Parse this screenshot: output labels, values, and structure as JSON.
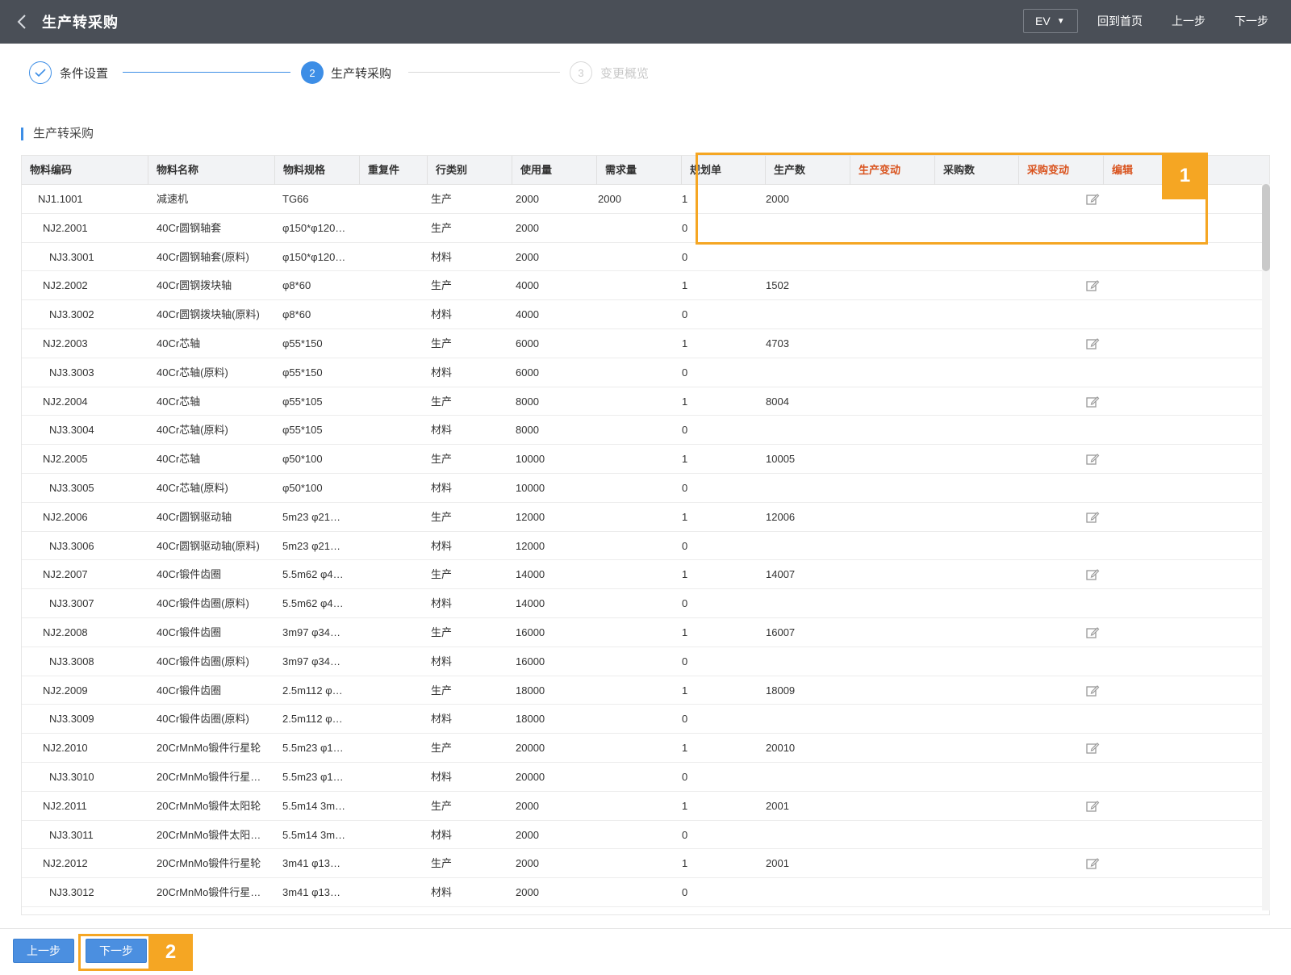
{
  "header": {
    "title": "生产转采购",
    "language": "EV",
    "links": [
      "回到首页",
      "上一步",
      "下一步"
    ]
  },
  "steps": [
    {
      "label": "条件设置",
      "index": "1",
      "state": "done"
    },
    {
      "label": "生产转采购",
      "index": "2",
      "state": "active"
    },
    {
      "label": "变更概览",
      "index": "3",
      "state": "todo"
    }
  ],
  "section_title": "生产转采购",
  "table": {
    "columns": [
      "物料编码",
      "物料名称",
      "物料规格",
      "重复件",
      "行类别",
      "使用量",
      "需求量",
      "规划单",
      "生产数",
      "生产变动",
      "采购数",
      "采购变动",
      "编辑"
    ],
    "rows": [
      {
        "code": "NJ1.1001",
        "name": "减速机",
        "spec": "TG66",
        "repeat": "",
        "category": "生产",
        "usage": "2000",
        "demand": "2000",
        "plan": "1",
        "prod": "2000",
        "edit": true
      },
      {
        "code": "NJ2.2001",
        "name": "40Cr圆钢轴套",
        "spec": "φ150*φ120…",
        "repeat": "",
        "category": "生产",
        "usage": "2000",
        "demand": "",
        "plan": "0",
        "prod": "",
        "edit": false
      },
      {
        "code": "NJ3.3001",
        "name": "40Cr圆钢轴套(原料)",
        "spec": "φ150*φ120…",
        "repeat": "",
        "category": "材料",
        "usage": "2000",
        "demand": "",
        "plan": "0",
        "prod": "",
        "edit": false
      },
      {
        "code": "NJ2.2002",
        "name": "40Cr圆钢拨块轴",
        "spec": "φ8*60",
        "repeat": "",
        "category": "生产",
        "usage": "4000",
        "demand": "",
        "plan": "1",
        "prod": "1502",
        "edit": true
      },
      {
        "code": "NJ3.3002",
        "name": "40Cr圆钢拨块轴(原料)",
        "spec": "φ8*60",
        "repeat": "",
        "category": "材料",
        "usage": "4000",
        "demand": "",
        "plan": "0",
        "prod": "",
        "edit": false
      },
      {
        "code": "NJ2.2003",
        "name": "40Cr芯轴",
        "spec": "φ55*150",
        "repeat": "",
        "category": "生产",
        "usage": "6000",
        "demand": "",
        "plan": "1",
        "prod": "4703",
        "edit": true
      },
      {
        "code": "NJ3.3003",
        "name": "40Cr芯轴(原料)",
        "spec": "φ55*150",
        "repeat": "",
        "category": "材料",
        "usage": "6000",
        "demand": "",
        "plan": "0",
        "prod": "",
        "edit": false
      },
      {
        "code": "NJ2.2004",
        "name": "40Cr芯轴",
        "spec": "φ55*105",
        "repeat": "",
        "category": "生产",
        "usage": "8000",
        "demand": "",
        "plan": "1",
        "prod": "8004",
        "edit": true
      },
      {
        "code": "NJ3.3004",
        "name": "40Cr芯轴(原料)",
        "spec": "φ55*105",
        "repeat": "",
        "category": "材料",
        "usage": "8000",
        "demand": "",
        "plan": "0",
        "prod": "",
        "edit": false
      },
      {
        "code": "NJ2.2005",
        "name": "40Cr芯轴",
        "spec": "φ50*100",
        "repeat": "",
        "category": "生产",
        "usage": "10000",
        "demand": "",
        "plan": "1",
        "prod": "10005",
        "edit": true
      },
      {
        "code": "NJ3.3005",
        "name": "40Cr芯轴(原料)",
        "spec": "φ50*100",
        "repeat": "",
        "category": "材料",
        "usage": "10000",
        "demand": "",
        "plan": "0",
        "prod": "",
        "edit": false
      },
      {
        "code": "NJ2.2006",
        "name": "40Cr圆钢驱动轴",
        "spec": "5m23 φ21…",
        "repeat": "",
        "category": "生产",
        "usage": "12000",
        "demand": "",
        "plan": "1",
        "prod": "12006",
        "edit": true
      },
      {
        "code": "NJ3.3006",
        "name": "40Cr圆钢驱动轴(原料)",
        "spec": "5m23 φ21…",
        "repeat": "",
        "category": "材料",
        "usage": "12000",
        "demand": "",
        "plan": "0",
        "prod": "",
        "edit": false
      },
      {
        "code": "NJ2.2007",
        "name": "40Cr锻件齿圈",
        "spec": "5.5m62 φ4…",
        "repeat": "",
        "category": "生产",
        "usage": "14000",
        "demand": "",
        "plan": "1",
        "prod": "14007",
        "edit": true
      },
      {
        "code": "NJ3.3007",
        "name": "40Cr锻件齿圈(原料)",
        "spec": "5.5m62 φ4…",
        "repeat": "",
        "category": "材料",
        "usage": "14000",
        "demand": "",
        "plan": "0",
        "prod": "",
        "edit": false
      },
      {
        "code": "NJ2.2008",
        "name": "40Cr锻件齿圈",
        "spec": "3m97 φ34…",
        "repeat": "",
        "category": "生产",
        "usage": "16000",
        "demand": "",
        "plan": "1",
        "prod": "16007",
        "edit": true
      },
      {
        "code": "NJ3.3008",
        "name": "40Cr锻件齿圈(原料)",
        "spec": "3m97 φ34…",
        "repeat": "",
        "category": "材料",
        "usage": "16000",
        "demand": "",
        "plan": "0",
        "prod": "",
        "edit": false
      },
      {
        "code": "NJ2.2009",
        "name": "40Cr锻件齿圈",
        "spec": "2.5m112 φ…",
        "repeat": "",
        "category": "生产",
        "usage": "18000",
        "demand": "",
        "plan": "1",
        "prod": "18009",
        "edit": true
      },
      {
        "code": "NJ3.3009",
        "name": "40Cr锻件齿圈(原料)",
        "spec": "2.5m112 φ…",
        "repeat": "",
        "category": "材料",
        "usage": "18000",
        "demand": "",
        "plan": "0",
        "prod": "",
        "edit": false
      },
      {
        "code": "NJ2.2010",
        "name": "20CrMnMo锻件行星轮",
        "spec": "5.5m23 φ1…",
        "repeat": "",
        "category": "生产",
        "usage": "20000",
        "demand": "",
        "plan": "1",
        "prod": "20010",
        "edit": true
      },
      {
        "code": "NJ3.3010",
        "name": "20CrMnMo锻件行星…",
        "spec": "5.5m23 φ1…",
        "repeat": "",
        "category": "材料",
        "usage": "20000",
        "demand": "",
        "plan": "0",
        "prod": "",
        "edit": false
      },
      {
        "code": "NJ2.2011",
        "name": "20CrMnMo锻件太阳轮",
        "spec": "5.5m14 3m…",
        "repeat": "",
        "category": "生产",
        "usage": "2000",
        "demand": "",
        "plan": "1",
        "prod": "2001",
        "edit": true
      },
      {
        "code": "NJ3.3011",
        "name": "20CrMnMo锻件太阳…",
        "spec": "5.5m14 3m…",
        "repeat": "",
        "category": "材料",
        "usage": "2000",
        "demand": "",
        "plan": "0",
        "prod": "",
        "edit": false
      },
      {
        "code": "NJ2.2012",
        "name": "20CrMnMo锻件行星轮",
        "spec": "3m41 φ13…",
        "repeat": "",
        "category": "生产",
        "usage": "2000",
        "demand": "",
        "plan": "1",
        "prod": "2001",
        "edit": true
      },
      {
        "code": "NJ3.3012",
        "name": "20CrMnMo锻件行星…",
        "spec": "3m41 φ13…",
        "repeat": "",
        "category": "材料",
        "usage": "2000",
        "demand": "",
        "plan": "0",
        "prod": "",
        "edit": false
      }
    ]
  },
  "annotations": {
    "box1": "1",
    "box2": "2"
  },
  "footer": {
    "prev_label": "上一步",
    "next_label": "下一步"
  },
  "colors": {
    "topbar": "#4a4f57",
    "accent": "#3d8ee6",
    "highlight": "#f5a623",
    "warn_text": "#d9531e"
  },
  "icons": {
    "back": "chevron-left-icon",
    "edit": "edit-icon",
    "step_done": "check-icon",
    "lang_caret": "caret-down-icon"
  }
}
